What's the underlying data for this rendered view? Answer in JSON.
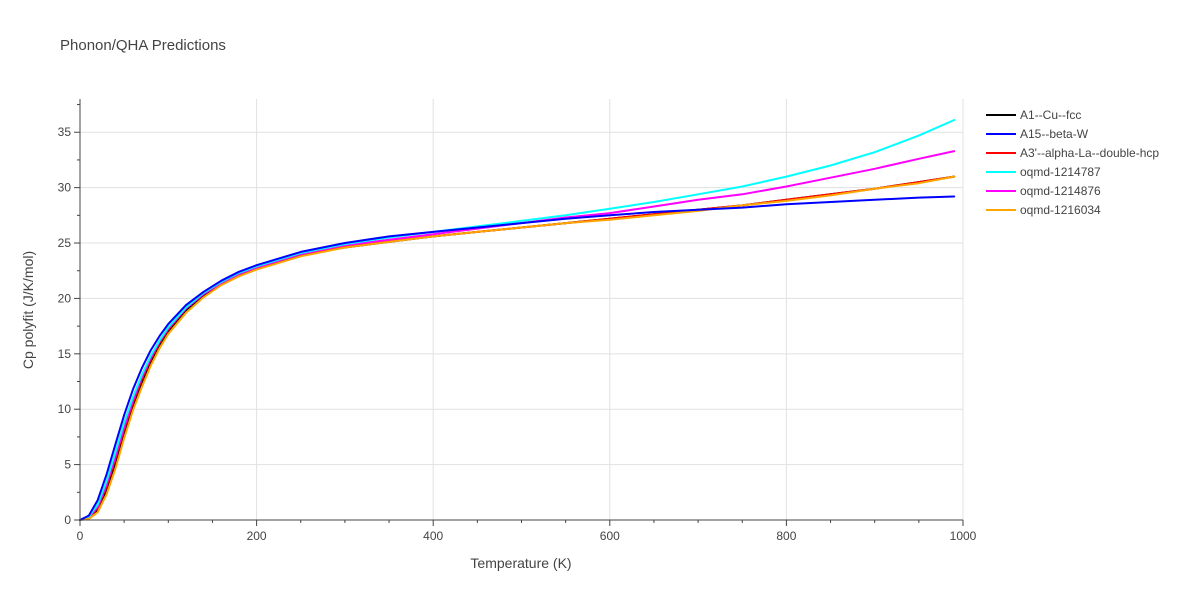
{
  "chart_data": {
    "type": "line",
    "title": "Phonon/QHA Predictions",
    "xlabel": "Temperature (K)",
    "ylabel": "Cp polyfit (J/K/mol)",
    "xlim": [
      0,
      1000
    ],
    "ylim": [
      0,
      38
    ],
    "x_ticks": [
      0,
      200,
      400,
      600,
      800,
      1000
    ],
    "y_ticks": [
      0,
      5,
      10,
      15,
      20,
      25,
      30,
      35
    ],
    "grid": true,
    "legend_position": "right",
    "colors": [
      "#000000",
      "#0000ff",
      "#ff0000",
      "#00ffff",
      "#ff00ff",
      "#ffa500"
    ],
    "x": [
      0,
      10,
      20,
      30,
      40,
      50,
      60,
      70,
      80,
      90,
      100,
      120,
      140,
      160,
      180,
      200,
      250,
      300,
      350,
      400,
      450,
      500,
      550,
      600,
      650,
      700,
      750,
      800,
      850,
      900,
      950,
      990
    ],
    "series": [
      {
        "name": "A1--Cu--fcc",
        "values": [
          0.0,
          0.15,
          0.9,
          2.6,
          5.0,
          7.8,
          10.2,
          12.3,
          14.2,
          15.7,
          17.0,
          18.9,
          20.3,
          21.3,
          22.1,
          22.7,
          23.9,
          24.6,
          25.1,
          25.6,
          26.0,
          26.4,
          26.8,
          27.2,
          27.6,
          28.0,
          28.4,
          28.9,
          29.4,
          29.9,
          30.5,
          31.0
        ]
      },
      {
        "name": "A15--beta-W",
        "values": [
          0.0,
          0.4,
          1.8,
          4.1,
          6.8,
          9.5,
          11.8,
          13.7,
          15.3,
          16.6,
          17.7,
          19.4,
          20.6,
          21.6,
          22.4,
          23.0,
          24.2,
          25.0,
          25.6,
          26.0,
          26.4,
          26.8,
          27.2,
          27.5,
          27.8,
          28.0,
          28.2,
          28.5,
          28.7,
          28.9,
          29.1,
          29.2
        ]
      },
      {
        "name": "A3'--alpha-La--double-hcp",
        "values": [
          0.0,
          0.2,
          1.1,
          3.0,
          5.5,
          8.2,
          10.6,
          12.7,
          14.5,
          16.0,
          17.2,
          19.1,
          20.4,
          21.4,
          22.2,
          22.8,
          24.0,
          24.7,
          25.2,
          25.6,
          26.0,
          26.4,
          26.8,
          27.2,
          27.6,
          28.0,
          28.4,
          28.9,
          29.4,
          29.9,
          30.5,
          31.0
        ]
      },
      {
        "name": "oqmd-1214787",
        "values": [
          0.0,
          0.3,
          1.4,
          3.5,
          6.1,
          8.8,
          11.1,
          13.1,
          14.8,
          16.2,
          17.4,
          19.2,
          20.5,
          21.5,
          22.3,
          22.9,
          24.1,
          24.9,
          25.5,
          26.0,
          26.5,
          27.0,
          27.5,
          28.1,
          28.7,
          29.4,
          30.1,
          31.0,
          32.0,
          33.2,
          34.7,
          36.1
        ]
      },
      {
        "name": "oqmd-1214876",
        "values": [
          0.0,
          0.25,
          1.2,
          3.2,
          5.7,
          8.4,
          10.8,
          12.9,
          14.6,
          16.1,
          17.3,
          19.1,
          20.4,
          21.4,
          22.2,
          22.8,
          24.0,
          24.8,
          25.3,
          25.8,
          26.3,
          26.8,
          27.3,
          27.7,
          28.3,
          28.9,
          29.4,
          30.1,
          30.9,
          31.7,
          32.6,
          33.3
        ]
      },
      {
        "name": "oqmd-1216034",
        "values": [
          0.0,
          0.1,
          0.7,
          2.3,
          4.6,
          7.4,
          9.9,
          12.0,
          13.9,
          15.5,
          16.8,
          18.7,
          20.1,
          21.2,
          22.0,
          22.6,
          23.8,
          24.6,
          25.1,
          25.6,
          26.0,
          26.4,
          26.8,
          27.1,
          27.5,
          27.9,
          28.4,
          28.8,
          29.3,
          29.9,
          30.4,
          31.0
        ]
      }
    ]
  }
}
